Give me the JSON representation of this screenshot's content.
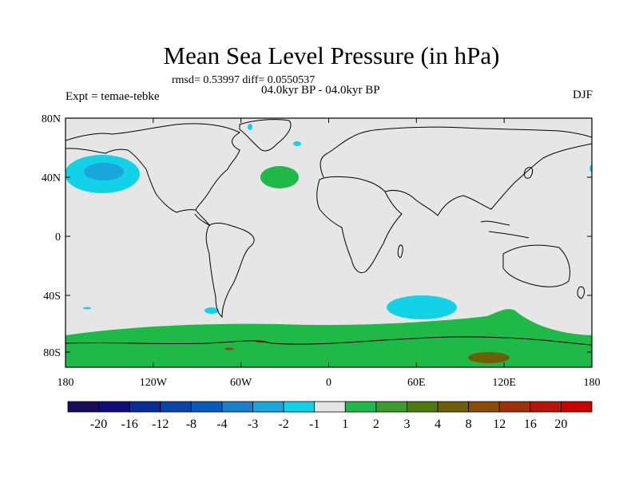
{
  "title": "Mean Sea Level Pressure (in hPa)",
  "stats": "rmsd= 0.53997 diff= 0.0550537",
  "period": "04.0kyr BP - 04.0kyr BP",
  "experiment": "Expt = temae-tebke",
  "season": "DJF",
  "axes": {
    "lat_ticks": [
      "80N",
      "40N",
      "0",
      "40S",
      "80S"
    ],
    "lon_ticks": [
      "180",
      "120W",
      "60W",
      "0",
      "60E",
      "120E",
      "180"
    ]
  },
  "colorbar": {
    "labels": [
      "-20",
      "-16",
      "-12",
      "-8",
      "-4",
      "-3",
      "-2",
      "-1",
      "1",
      "2",
      "3",
      "4",
      "8",
      "12",
      "16",
      "20"
    ],
    "colors": [
      "#1a0a5a",
      "#0d0e7a",
      "#0a2a96",
      "#0a44a8",
      "#0a5cbc",
      "#1a80cc",
      "#18a6dc",
      "#12d2e8",
      "#e6e6e6",
      "#1eb946",
      "#3c9a2e",
      "#4f7a12",
      "#6e5e08",
      "#8a4a08",
      "#a03008",
      "#b81408",
      "#cc0000"
    ]
  },
  "map": {
    "background": "#e6e6e6",
    "coast_color": "#000000"
  }
}
